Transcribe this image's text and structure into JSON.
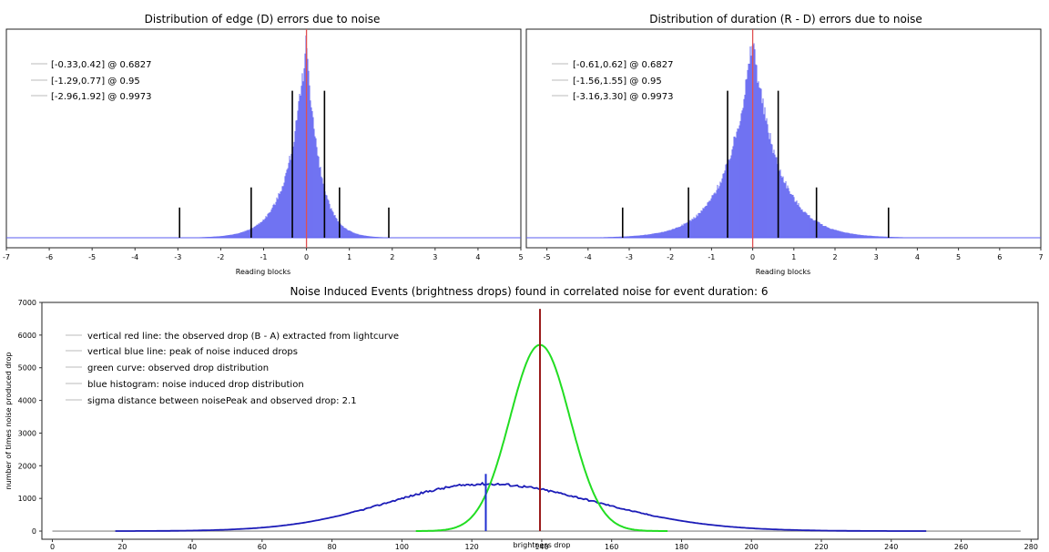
{
  "chart_data": [
    {
      "type": "histogram",
      "title": "Distribution of edge (D) errors due to noise",
      "xlabel": "Reading blocks",
      "ylabel": "",
      "xlim": [
        -7,
        5
      ],
      "xticks": [
        -7,
        -6,
        -5,
        -4,
        -3,
        -2,
        -1,
        0,
        1,
        2,
        3,
        4,
        5
      ],
      "distribution": {
        "center": 0.0,
        "left_scale": 0.42,
        "right_scale": 0.3
      },
      "red_line_x": 0,
      "legend": [
        "[-0.33,0.42] @ 0.6827",
        "[-1.29,0.77] @ 0.95",
        "[-2.96,1.92] @ 0.9973"
      ],
      "intervals": [
        {
          "low": -0.33,
          "high": 0.42,
          "level": 0.6827,
          "height": 0.73
        },
        {
          "low": -1.29,
          "high": 0.77,
          "level": 0.95,
          "height": 0.25
        },
        {
          "low": -2.96,
          "high": 1.92,
          "level": 0.9973,
          "height": 0.15
        }
      ],
      "colors": {
        "histogram": "#5a5ef0",
        "red_line": "#e05050",
        "interval": "#000000"
      }
    },
    {
      "type": "histogram",
      "title": "Distribution of duration (R - D) errors due to noise",
      "xlabel": "Reading blocks",
      "ylabel": "",
      "xlim": [
        -5.5,
        7
      ],
      "xticks": [
        -5,
        -4,
        -3,
        -2,
        -1,
        0,
        1,
        2,
        3,
        4,
        5,
        6,
        7
      ],
      "distribution": {
        "center": 0.0,
        "left_scale": 0.62,
        "right_scale": 0.62
      },
      "red_line_x": 0,
      "legend": [
        "[-0.61,0.62] @ 0.6827",
        "[-1.56,1.55] @ 0.95",
        "[-3.16,3.30] @ 0.9973"
      ],
      "intervals": [
        {
          "low": -0.61,
          "high": 0.62,
          "level": 0.6827,
          "height": 0.73
        },
        {
          "low": -1.56,
          "high": 1.55,
          "level": 0.95,
          "height": 0.25
        },
        {
          "low": -3.16,
          "high": 3.3,
          "level": 0.9973,
          "height": 0.15
        }
      ],
      "colors": {
        "histogram": "#5a5ef0",
        "red_line": "#e05050",
        "interval": "#000000"
      }
    },
    {
      "type": "line",
      "title": "Noise Induced Events (brightness drops) found in correlated noise for event duration: 6",
      "xlabel": "brightness drop",
      "ylabel": "number of times noise produced drop",
      "xlim": [
        -3,
        282
      ],
      "ylim": [
        -250,
        7000
      ],
      "xticks": [
        0,
        20,
        40,
        60,
        80,
        100,
        120,
        140,
        160,
        180,
        200,
        220,
        240,
        260,
        280
      ],
      "yticks": [
        0,
        1000,
        2000,
        3000,
        4000,
        5000,
        6000,
        7000
      ],
      "legend": [
        "vertical red line: the observed drop (B - A) extracted from lightcurve",
        "vertical blue line: peak of noise induced drops",
        "green curve: observed drop distribution",
        "blue histogram: noise induced drop distribution",
        "sigma distance between noisePeak and observed drop: 2.1"
      ],
      "noise_distribution": {
        "peak_x": 124,
        "peak_y": 1450,
        "sigma_left": 28,
        "sigma_right": 32,
        "x_range": [
          18,
          250
        ]
      },
      "observed_distribution": {
        "peak_x": 139.5,
        "peak_y": 5700,
        "sigma": 8.6,
        "x_range": [
          104,
          176
        ]
      },
      "baseline_range": [
        0,
        277
      ],
      "red_line": {
        "x": 139.5,
        "top": 6800
      },
      "blue_line": {
        "x": 124,
        "top": 1750
      },
      "colors": {
        "noise": "#1c1cb8",
        "observed": "#22dd22",
        "red_line": "#9b1b1b",
        "blue_line": "#1f2fd0",
        "baseline": "#9a9a9a"
      }
    }
  ]
}
